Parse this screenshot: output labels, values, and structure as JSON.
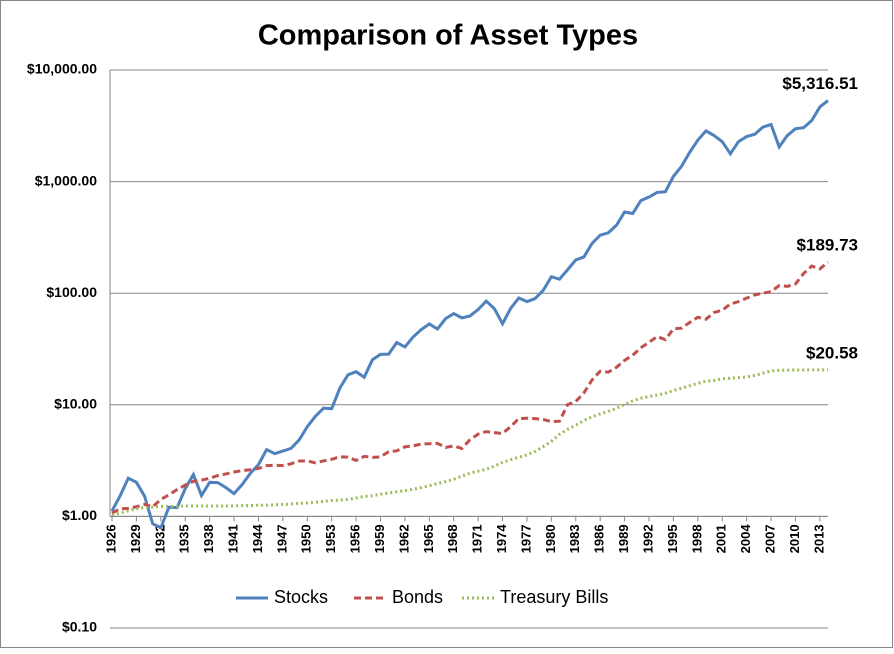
{
  "chart_data": {
    "type": "line",
    "title": "Comparison of Asset Types",
    "x": [
      1926,
      1927,
      1928,
      1929,
      1930,
      1931,
      1932,
      1933,
      1934,
      1935,
      1936,
      1937,
      1938,
      1939,
      1940,
      1941,
      1942,
      1943,
      1944,
      1945,
      1946,
      1947,
      1948,
      1949,
      1950,
      1951,
      1952,
      1953,
      1954,
      1955,
      1956,
      1957,
      1958,
      1959,
      1960,
      1961,
      1962,
      1963,
      1964,
      1965,
      1966,
      1967,
      1968,
      1969,
      1970,
      1971,
      1972,
      1973,
      1974,
      1975,
      1976,
      1977,
      1978,
      1979,
      1980,
      1981,
      1982,
      1983,
      1984,
      1985,
      1986,
      1987,
      1988,
      1989,
      1990,
      1991,
      1992,
      1993,
      1994,
      1995,
      1996,
      1997,
      1998,
      1999,
      2000,
      2001,
      2002,
      2003,
      2004,
      2005,
      2006,
      2007,
      2008,
      2009,
      2010,
      2011,
      2012,
      2013,
      2014
    ],
    "xlim": [
      1926,
      2014
    ],
    "xticks": [
      1926,
      1929,
      1932,
      1935,
      1938,
      1941,
      1944,
      1947,
      1950,
      1953,
      1956,
      1959,
      1962,
      1965,
      1968,
      1971,
      1974,
      1977,
      1980,
      1983,
      1986,
      1989,
      1992,
      1995,
      1998,
      2001,
      2004,
      2007,
      2010,
      2013
    ],
    "log_scale_y": true,
    "ylim": [
      0.1,
      10000
    ],
    "yticks": [
      {
        "value": 0.1,
        "label": "$0.10"
      },
      {
        "value": 1,
        "label": "$1.00"
      },
      {
        "value": 10,
        "label": "$10.00"
      },
      {
        "value": 100,
        "label": "$100.00"
      },
      {
        "value": 1000,
        "label": "$1,000.00"
      },
      {
        "value": 10000,
        "label": "$10,000.00"
      }
    ],
    "grid": true,
    "x_axis_crosses": 1,
    "legend": "bottom",
    "series": [
      {
        "name": "Stocks",
        "color": "#4f81bd",
        "dash": "solid",
        "values": [
          1.12,
          1.53,
          2.2,
          2.02,
          1.52,
          0.86,
          0.79,
          1.21,
          1.2,
          1.77,
          2.37,
          1.54,
          2.02,
          2.01,
          1.81,
          1.6,
          1.93,
          2.43,
          2.91,
          3.97,
          3.65,
          3.85,
          4.07,
          4.84,
          6.36,
          7.89,
          9.33,
          9.24,
          14.1,
          18.56,
          19.78,
          17.65,
          25.3,
          28.33,
          28.47,
          36.13,
          32.98,
          40.5,
          47.17,
          53.04,
          47.71,
          59.15,
          65.7,
          60.11,
          62.52,
          71.46,
          85.01,
          72.53,
          53.34,
          73.19,
          90.58,
          84.08,
          89.59,
          106.11,
          140.51,
          133.62,
          162.22,
          198.74,
          211.2,
          279.11,
          330.67,
          347.96,
          406.46,
          534.46,
          517.5,
          675.59,
          727.41,
          800.08,
          810.54,
          1113.92,
          1370.95,
          1828.33,
          2350.89,
          2845.63,
          2586.52,
          2279.13,
          1775.34,
          2284.8,
          2533.19,
          2657.56,
          3077.33,
          3246.39,
          2045.38,
          2586.58,
          2976.3,
          3039.02,
          3525.29,
          4667.3,
          5316.51
        ],
        "value_labels": {
          "88": "$5,316.51"
        }
      },
      {
        "name": "Bonds",
        "color": "#c0504d",
        "dash": "dashed",
        "values": [
          1.07,
          1.17,
          1.18,
          1.22,
          1.28,
          1.22,
          1.42,
          1.56,
          1.74,
          1.91,
          2.06,
          2.11,
          2.2,
          2.32,
          2.4,
          2.5,
          2.57,
          2.62,
          2.69,
          2.85,
          2.87,
          2.86,
          2.96,
          3.14,
          3.14,
          3.02,
          3.14,
          3.25,
          3.42,
          3.4,
          3.17,
          3.45,
          3.38,
          3.41,
          3.8,
          3.87,
          4.2,
          4.28,
          4.45,
          4.48,
          4.51,
          4.15,
          4.28,
          4.06,
          4.87,
          5.46,
          5.75,
          5.63,
          5.53,
          6.38,
          7.53,
          7.58,
          7.51,
          7.38,
          7.07,
          7.13,
          10.04,
          10.71,
          12.79,
          16.73,
          20.01,
          19.6,
          21.67,
          25.04,
          27.82,
          32.46,
          36.25,
          40.9,
          38.34,
          47.95,
          48.56,
          54.7,
          60.86,
          58.48,
          67.22,
          70.28,
          80.11,
          84.03,
          90.39,
          96.41,
          100.16,
          103.22,
          117.07,
          115.12,
          120.97,
          150.0,
          175.0,
          165.0,
          189.73
        ],
        "value_labels": {
          "88": "$189.73"
        }
      },
      {
        "name": "Treasury Bills",
        "color": "#9bbb59",
        "dash": "dotted",
        "values": [
          1.03,
          1.07,
          1.12,
          1.17,
          1.2,
          1.21,
          1.23,
          1.23,
          1.23,
          1.24,
          1.24,
          1.24,
          1.24,
          1.24,
          1.24,
          1.24,
          1.25,
          1.25,
          1.26,
          1.26,
          1.27,
          1.28,
          1.29,
          1.31,
          1.32,
          1.34,
          1.36,
          1.39,
          1.4,
          1.42,
          1.46,
          1.51,
          1.53,
          1.58,
          1.62,
          1.66,
          1.7,
          1.75,
          1.81,
          1.88,
          1.97,
          2.05,
          2.15,
          2.29,
          2.44,
          2.54,
          2.64,
          2.82,
          3.05,
          3.22,
          3.39,
          3.56,
          3.82,
          4.22,
          4.71,
          5.44,
          6.03,
          6.57,
          7.24,
          7.8,
          8.28,
          8.73,
          9.29,
          10.06,
          10.85,
          11.46,
          11.86,
          12.21,
          12.7,
          13.42,
          14.1,
          14.82,
          15.55,
          16.28,
          16.5,
          17.1,
          17.3,
          17.5,
          17.8,
          18.3,
          19.2,
          20.1,
          20.4,
          20.45,
          20.5,
          20.52,
          20.54,
          20.56,
          20.58
        ],
        "value_labels": {
          "88": "$20.58"
        }
      }
    ]
  }
}
